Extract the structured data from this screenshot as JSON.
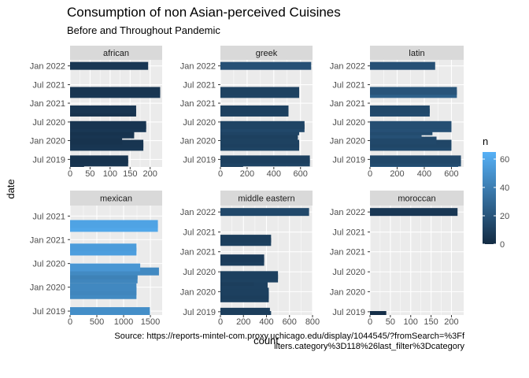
{
  "chart_data": {
    "type": "bar",
    "title": "Consumption of non Asian-perceived Cuisines",
    "subtitle": "Before and Throughout Pandemic",
    "xlabel": "count",
    "ylabel": "date",
    "caption_lines": [
      "Source: https://reports-mintel-com.proxy.uchicago.edu/display/1044545/?fromSearch=%3Ff",
      "ilters.category%3D118%26last_filter%3Dcategory"
    ],
    "legend": {
      "title": "n",
      "ticks": [
        0,
        20,
        40,
        60
      ],
      "range": [
        0,
        65
      ],
      "low_color": "#132B43",
      "high_color": "#56B1F7"
    },
    "panel_bg": "#EBEBEB",
    "strip_bg": "#D9D9D9",
    "grid_color": "#FFFFFF",
    "date_ticks": [
      {
        "label": "Jul 2019",
        "date": "2019-07-01"
      },
      {
        "label": "Jan 2020",
        "date": "2020-01-01"
      },
      {
        "label": "Jul 2020",
        "date": "2020-07-01"
      },
      {
        "label": "Jan 2021",
        "date": "2021-01-01"
      },
      {
        "label": "Jul 2021",
        "date": "2021-07-01"
      },
      {
        "label": "Jan 2022",
        "date": "2022-01-01"
      }
    ],
    "facets": [
      {
        "name": "african",
        "xlim": [
          0,
          230
        ],
        "xticks": [
          0,
          50,
          100,
          150,
          200
        ],
        "ylim": [
          "2019-04-18",
          "2022-03-01"
        ],
        "ytick_labels": [
          "Jul 2019",
          "Jan 2020",
          "Jul 2020",
          "Jan 2021",
          "Jul 2021",
          "Jan 2022"
        ],
        "bars": [
          {
            "date": "2019-05-01",
            "value": 35,
            "n": 3
          },
          {
            "date": "2019-06-01",
            "value": 145,
            "n": 5
          },
          {
            "date": "2019-07-01",
            "value": 145,
            "n": 4
          },
          {
            "date": "2019-11-01",
            "value": 183,
            "n": 6
          },
          {
            "date": "2019-12-01",
            "value": 183,
            "n": 5
          },
          {
            "date": "2020-01-01",
            "value": 130,
            "n": 4
          },
          {
            "date": "2020-03-01",
            "value": 160,
            "n": 5
          },
          {
            "date": "2020-04-01",
            "value": 160,
            "n": 4
          },
          {
            "date": "2020-05-01",
            "value": 190,
            "n": 6
          },
          {
            "date": "2020-06-01",
            "value": 190,
            "n": 5
          },
          {
            "date": "2020-10-01",
            "value": 165,
            "n": 4
          },
          {
            "date": "2020-11-01",
            "value": 165,
            "n": 5
          },
          {
            "date": "2021-04-01",
            "value": 225,
            "n": 6
          },
          {
            "date": "2021-05-01",
            "value": 225,
            "n": 5
          },
          {
            "date": "2022-01-01",
            "value": 195,
            "n": 6
          }
        ]
      },
      {
        "name": "greek",
        "xlim": [
          0,
          690
        ],
        "xticks": [
          0,
          200,
          400,
          600
        ],
        "ylim": [
          "2019-04-18",
          "2022-03-01"
        ],
        "ytick_labels": [
          "Jul 2019",
          "Jan 2020",
          "Jul 2020",
          "Jan 2021",
          "Jul 2021",
          "Jan 2022"
        ],
        "bars": [
          {
            "date": "2019-05-01",
            "value": 170,
            "n": 8
          },
          {
            "date": "2019-06-01",
            "value": 670,
            "n": 12
          },
          {
            "date": "2019-07-01",
            "value": 670,
            "n": 10
          },
          {
            "date": "2019-11-01",
            "value": 590,
            "n": 12
          },
          {
            "date": "2019-12-01",
            "value": 590,
            "n": 10
          },
          {
            "date": "2020-01-01",
            "value": 580,
            "n": 11
          },
          {
            "date": "2020-03-01",
            "value": 580,
            "n": 10
          },
          {
            "date": "2020-04-01",
            "value": 590,
            "n": 12
          },
          {
            "date": "2020-05-01",
            "value": 630,
            "n": 14
          },
          {
            "date": "2020-06-01",
            "value": 630,
            "n": 12
          },
          {
            "date": "2020-10-01",
            "value": 510,
            "n": 11
          },
          {
            "date": "2020-11-01",
            "value": 510,
            "n": 10
          },
          {
            "date": "2021-04-01",
            "value": 590,
            "n": 12
          },
          {
            "date": "2021-05-01",
            "value": 590,
            "n": 11
          },
          {
            "date": "2022-01-01",
            "value": 680,
            "n": 18
          }
        ]
      },
      {
        "name": "latin",
        "xlim": [
          0,
          690
        ],
        "xticks": [
          0,
          200,
          400,
          600
        ],
        "ylim": [
          "2019-04-18",
          "2022-03-01"
        ],
        "ytick_labels": [
          "Jul 2019",
          "Jan 2020",
          "Jul 2020",
          "Jan 2021",
          "Jul 2021",
          "Jan 2022"
        ],
        "bars": [
          {
            "date": "2019-05-01",
            "value": 650,
            "n": 24
          },
          {
            "date": "2019-06-01",
            "value": 670,
            "n": 16
          },
          {
            "date": "2019-07-01",
            "value": 670,
            "n": 14
          },
          {
            "date": "2019-11-01",
            "value": 600,
            "n": 15
          },
          {
            "date": "2019-12-01",
            "value": 600,
            "n": 13
          },
          {
            "date": "2020-01-01",
            "value": 490,
            "n": 14
          },
          {
            "date": "2020-03-01",
            "value": 380,
            "n": 18
          },
          {
            "date": "2020-04-01",
            "value": 460,
            "n": 16
          },
          {
            "date": "2020-05-01",
            "value": 600,
            "n": 18
          },
          {
            "date": "2020-06-01",
            "value": 600,
            "n": 17
          },
          {
            "date": "2020-10-01",
            "value": 440,
            "n": 15
          },
          {
            "date": "2020-11-01",
            "value": 440,
            "n": 14
          },
          {
            "date": "2021-04-01",
            "value": 640,
            "n": 26
          },
          {
            "date": "2021-05-01",
            "value": 640,
            "n": 20
          },
          {
            "date": "2022-01-01",
            "value": 480,
            "n": 18
          }
        ]
      },
      {
        "name": "mexican",
        "xlim": [
          0,
          1720
        ],
        "xticks": [
          0,
          500,
          1000,
          1500
        ],
        "ylim": [
          "2019-06-01",
          "2021-09-20"
        ],
        "ytick_labels": [
          "Jul 2019",
          "Jan 2020",
          "Jul 2020",
          "Jan 2021",
          "Jul 2021"
        ],
        "bars": [
          {
            "date": "2019-06-01",
            "value": 1490,
            "n": 50
          },
          {
            "date": "2019-07-01",
            "value": 1490,
            "n": 48
          },
          {
            "date": "2019-11-01",
            "value": 1240,
            "n": 46
          },
          {
            "date": "2019-12-01",
            "value": 1240,
            "n": 44
          },
          {
            "date": "2020-01-01",
            "value": 1240,
            "n": 45
          },
          {
            "date": "2020-03-01",
            "value": 1260,
            "n": 44
          },
          {
            "date": "2020-04-01",
            "value": 1260,
            "n": 42
          },
          {
            "date": "2020-05-01",
            "value": 1660,
            "n": 46
          },
          {
            "date": "2020-06-01",
            "value": 1310,
            "n": 52
          },
          {
            "date": "2020-10-01",
            "value": 1240,
            "n": 56
          },
          {
            "date": "2020-11-01",
            "value": 1240,
            "n": 55
          },
          {
            "date": "2021-04-01",
            "value": 1640,
            "n": 60
          },
          {
            "date": "2021-05-01",
            "value": 1640,
            "n": 58
          }
        ]
      },
      {
        "name": "middle eastern",
        "xlim": [
          0,
          800
        ],
        "xticks": [
          0,
          200,
          400,
          600,
          800
        ],
        "ylim": [
          "2019-06-01",
          "2022-03-01"
        ],
        "ytick_labels": [
          "Jul 2019",
          "Jan 2020",
          "Jul 2020",
          "Jan 2021",
          "Jul 2021",
          "Jan 2022"
        ],
        "bars": [
          {
            "date": "2019-06-01",
            "value": 440,
            "n": 10
          },
          {
            "date": "2019-07-01",
            "value": 430,
            "n": 9
          },
          {
            "date": "2019-11-01",
            "value": 420,
            "n": 10
          },
          {
            "date": "2019-12-01",
            "value": 420,
            "n": 9
          },
          {
            "date": "2020-01-01",
            "value": 420,
            "n": 10
          },
          {
            "date": "2020-03-01",
            "value": 410,
            "n": 10
          },
          {
            "date": "2020-04-01",
            "value": 290,
            "n": 9
          },
          {
            "date": "2020-05-01",
            "value": 500,
            "n": 11
          },
          {
            "date": "2020-06-01",
            "value": 500,
            "n": 10
          },
          {
            "date": "2020-10-01",
            "value": 380,
            "n": 9
          },
          {
            "date": "2020-11-01",
            "value": 380,
            "n": 8
          },
          {
            "date": "2021-04-01",
            "value": 440,
            "n": 10
          },
          {
            "date": "2021-05-01",
            "value": 440,
            "n": 9
          },
          {
            "date": "2022-01-01",
            "value": 770,
            "n": 14
          }
        ]
      },
      {
        "name": "moroccan",
        "xlim": [
          0,
          230
        ],
        "xticks": [
          0,
          50,
          100,
          150,
          200
        ],
        "ylim": [
          "2019-06-01",
          "2022-03-01"
        ],
        "ytick_labels": [
          "Jul 2019",
          "Jan 2020",
          "Jul 2020",
          "Jan 2021",
          "Jul 2021",
          "Jan 2022"
        ],
        "bars": [
          {
            "date": "2019-06-01",
            "value": 40,
            "n": 2
          },
          {
            "date": "2022-01-01",
            "value": 215,
            "n": 6
          }
        ]
      }
    ]
  }
}
